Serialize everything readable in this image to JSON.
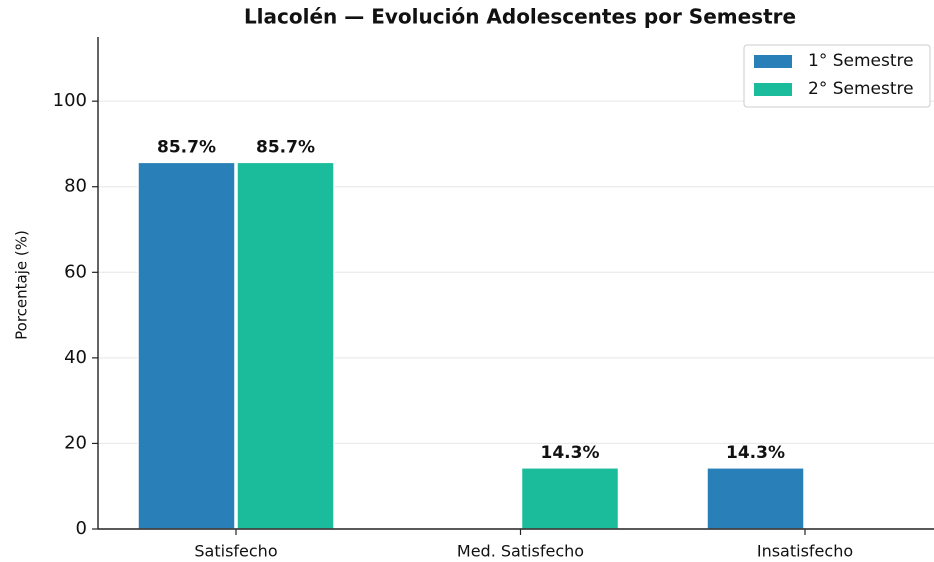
{
  "chart_data": {
    "type": "bar",
    "title": "Llacolén — Evolución Adolescentes por Semestre",
    "ylabel": "Porcentaje (%)",
    "categories": [
      "Satisfecho",
      "Med. Satisfecho",
      "Insatisfecho"
    ],
    "series": [
      {
        "name": "1° Semestre",
        "color": "#2980b9",
        "values": [
          85.7,
          0,
          14.3
        ],
        "value_labels": [
          "85.7%",
          null,
          "14.3%"
        ]
      },
      {
        "name": "2° Semestre",
        "color": "#1abc9c",
        "values": [
          85.7,
          14.3,
          0
        ],
        "value_labels": [
          "85.7%",
          "14.3%",
          null
        ]
      }
    ],
    "ylim": [
      0,
      115
    ],
    "yticks": [
      0,
      20,
      40,
      60,
      80,
      100
    ],
    "grid": true,
    "legend": "upper right"
  }
}
